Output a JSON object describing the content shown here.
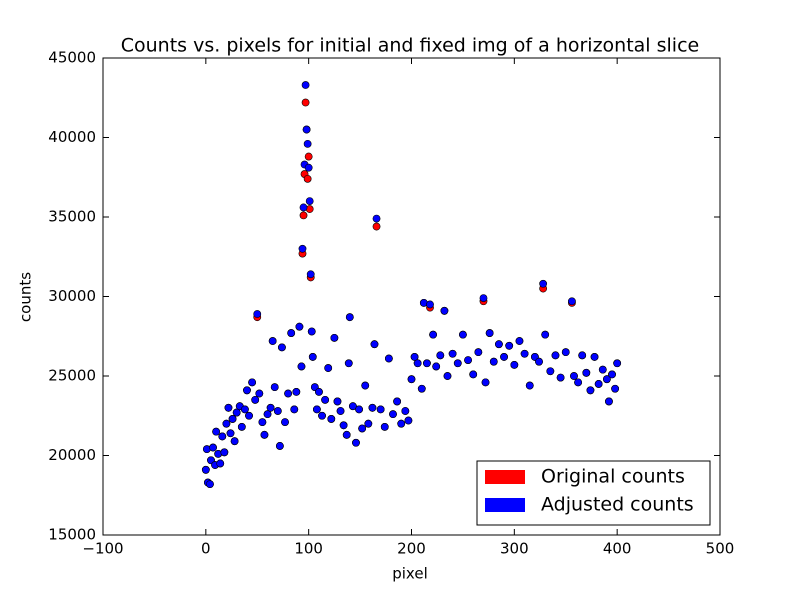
{
  "chart_data": {
    "type": "scatter",
    "title": "Counts vs. pixels for initial and fixed img of a horizontal slice",
    "x_label": "pixel",
    "y_label": "counts",
    "xlim": [
      -100,
      500
    ],
    "xticks": [
      {
        "value": -100,
        "label": "−100"
      },
      0,
      100,
      200,
      300,
      400,
      500
    ],
    "ylim": [
      15000,
      45000
    ],
    "yticks": [
      15000,
      20000,
      25000,
      30000,
      35000,
      40000,
      45000
    ],
    "legend": "lower right",
    "grid": false,
    "x": [
      0,
      1,
      2,
      4,
      5,
      7,
      9,
      10,
      12,
      14,
      16,
      18,
      20,
      22,
      24,
      26,
      28,
      30,
      33,
      35,
      38,
      40,
      42,
      45,
      48,
      50,
      52,
      55,
      57,
      60,
      63,
      65,
      67,
      70,
      72,
      74,
      77,
      80,
      83,
      86,
      88,
      91,
      93,
      94,
      95,
      96,
      97,
      98,
      99,
      100,
      101,
      102,
      103,
      104,
      106,
      108,
      110,
      113,
      116,
      119,
      122,
      125,
      128,
      131,
      134,
      137,
      139,
      140,
      143,
      146,
      149,
      152,
      155,
      158,
      162,
      164,
      166,
      170,
      174,
      178,
      182,
      186,
      190,
      194,
      197,
      200,
      203,
      206,
      210,
      212,
      215,
      218,
      221,
      224,
      228,
      232,
      235,
      240,
      245,
      250,
      255,
      260,
      265,
      270,
      272,
      276,
      280,
      285,
      290,
      295,
      300,
      305,
      310,
      315,
      320,
      324,
      328,
      330,
      335,
      340,
      345,
      350,
      356,
      358,
      362,
      366,
      370,
      374,
      378,
      382,
      386,
      390,
      392,
      395,
      398,
      400
    ],
    "series": [
      {
        "name": "Original counts",
        "color": "#ff0000",
        "values": [
          19100,
          20400,
          18300,
          18200,
          19700,
          20500,
          19400,
          21500,
          20100,
          19500,
          21200,
          20200,
          22000,
          23000,
          21400,
          22300,
          20900,
          22700,
          23100,
          21800,
          22900,
          24100,
          22500,
          24600,
          23500,
          28700,
          23900,
          22100,
          21300,
          22600,
          23000,
          27200,
          24300,
          22800,
          20600,
          26800,
          22100,
          23900,
          27700,
          22900,
          24000,
          28100,
          25600,
          32700,
          35100,
          37700,
          42200,
          40500,
          37400,
          38800,
          35500,
          31200,
          27800,
          26200,
          24300,
          22900,
          24000,
          22500,
          23500,
          25500,
          22300,
          27400,
          23400,
          22800,
          21900,
          21300,
          25800,
          28700,
          23100,
          20800,
          22900,
          21700,
          24400,
          22000,
          23000,
          27000,
          34400,
          22900,
          21800,
          26100,
          22600,
          23400,
          22000,
          22800,
          22200,
          24800,
          26200,
          25800,
          24200,
          29600,
          25800,
          29300,
          27600,
          25600,
          26300,
          29100,
          25000,
          26400,
          25800,
          27600,
          26000,
          25100,
          26500,
          29700,
          24600,
          27700,
          25900,
          27000,
          26200,
          26900,
          25700,
          27200,
          26400,
          24400,
          26200,
          25900,
          30500,
          27600,
          25300,
          26300,
          24900,
          26500,
          29600,
          25000,
          24600,
          26300,
          25200,
          24100,
          26200,
          24500,
          25400,
          24800,
          23400,
          25100,
          24200,
          25800
        ]
      },
      {
        "name": "Adjusted counts",
        "color": "#0000ff",
        "values": [
          19100,
          20400,
          18300,
          18200,
          19700,
          20500,
          19400,
          21500,
          20100,
          19500,
          21200,
          20200,
          22000,
          23000,
          21400,
          22300,
          20900,
          22700,
          23100,
          21800,
          22900,
          24100,
          22500,
          24600,
          23500,
          28900,
          23900,
          22100,
          21300,
          22600,
          23000,
          27200,
          24300,
          22800,
          20600,
          26800,
          22100,
          23900,
          27700,
          22900,
          24000,
          28100,
          25600,
          33000,
          35600,
          38300,
          43300,
          40500,
          39600,
          38100,
          36000,
          31400,
          27800,
          26200,
          24300,
          22900,
          24000,
          22500,
          23500,
          25500,
          22300,
          27400,
          23400,
          22800,
          21900,
          21300,
          25800,
          28700,
          23100,
          20800,
          22900,
          21700,
          24400,
          22000,
          23000,
          27000,
          34900,
          22900,
          21800,
          26100,
          22600,
          23400,
          22000,
          22800,
          22200,
          24800,
          26200,
          25800,
          24200,
          29600,
          25800,
          29500,
          27600,
          25600,
          26300,
          29100,
          25000,
          26400,
          25800,
          27600,
          26000,
          25100,
          26500,
          29900,
          24600,
          27700,
          25900,
          27000,
          26200,
          26900,
          25700,
          27200,
          26400,
          24400,
          26200,
          25900,
          30800,
          27600,
          25300,
          26300,
          24900,
          26500,
          29700,
          25000,
          24600,
          26300,
          25200,
          24100,
          26200,
          24500,
          25400,
          24800,
          23400,
          25100,
          24200,
          25800
        ]
      }
    ]
  }
}
